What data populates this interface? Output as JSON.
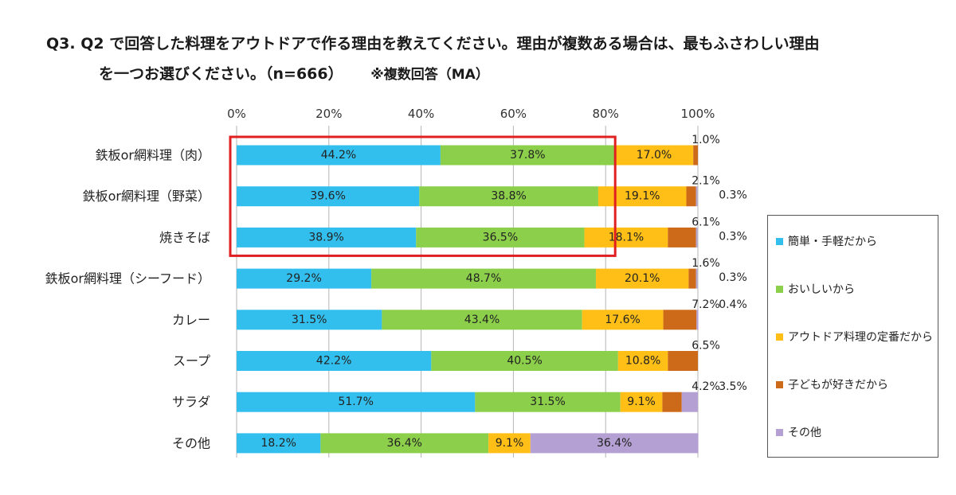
{
  "title_line1": "Q3. Q2 で回答した料理をアウトドアで作る理由を教えてください。理由が複数ある場合は、最もふさわしい理由",
  "title_line2": "を一つお選びください。（n=666）",
  "title_note": "※複数回答（MA）",
  "colors": {
    "series": [
      "#33bfee",
      "#8ccf4a",
      "#ffbf17",
      "#cc6a1a",
      "#b4a0d2"
    ],
    "highlight": "#e02020",
    "grid": "#b5b5b5"
  },
  "chart_data": {
    "type": "bar",
    "orientation": "horizontal",
    "stacked": true,
    "xlim": [
      0,
      100
    ],
    "x_ticks": [
      "0%",
      "20%",
      "40%",
      "60%",
      "80%",
      "100%"
    ],
    "grid": true,
    "legend_position": "right",
    "categories": [
      "鉄板or網料理（肉）",
      "鉄板or網料理（野菜）",
      "焼きそば",
      "鉄板or網料理（シーフード）",
      "カレー",
      "スープ",
      "サラダ",
      "その他"
    ],
    "series": [
      {
        "name": "簡単・手軽だから",
        "values": [
          44.2,
          39.6,
          38.9,
          29.2,
          31.5,
          42.2,
          51.7,
          18.2
        ]
      },
      {
        "name": "おいしいから",
        "values": [
          37.8,
          38.8,
          36.5,
          48.7,
          43.4,
          40.5,
          31.5,
          36.4
        ]
      },
      {
        "name": "アウトドア料理の定番だから",
        "values": [
          17.0,
          19.1,
          18.1,
          20.1,
          17.6,
          10.8,
          9.1,
          9.1
        ]
      },
      {
        "name": "子どもが好きだから",
        "values": [
          1.0,
          2.1,
          6.1,
          1.6,
          7.2,
          6.5,
          4.2,
          0.0
        ]
      },
      {
        "name": "その他",
        "values": [
          0.0,
          0.3,
          0.3,
          0.3,
          0.4,
          0.0,
          3.5,
          36.4
        ]
      }
    ],
    "value_labels": [
      [
        "44.2%",
        "37.8%",
        "17.0%",
        "1.0%",
        ""
      ],
      [
        "39.6%",
        "38.8%",
        "19.1%",
        "2.1%",
        "0.3%"
      ],
      [
        "38.9%",
        "36.5%",
        "18.1%",
        "6.1%",
        "0.3%"
      ],
      [
        "29.2%",
        "48.7%",
        "20.1%",
        "1.6%",
        "0.3%"
      ],
      [
        "31.5%",
        "43.4%",
        "17.6%",
        "7.2%",
        "0.4%"
      ],
      [
        "42.2%",
        "40.5%",
        "10.8%",
        "6.5%",
        ""
      ],
      [
        "51.7%",
        "31.5%",
        "9.1%",
        "4.2%",
        "3.5%"
      ],
      [
        "18.2%",
        "36.4%",
        "9.1%",
        "",
        "36.4%"
      ]
    ],
    "highlighted_categories": [
      "鉄板or網料理（肉）",
      "鉄板or網料理（野菜）",
      "焼きそば"
    ]
  }
}
